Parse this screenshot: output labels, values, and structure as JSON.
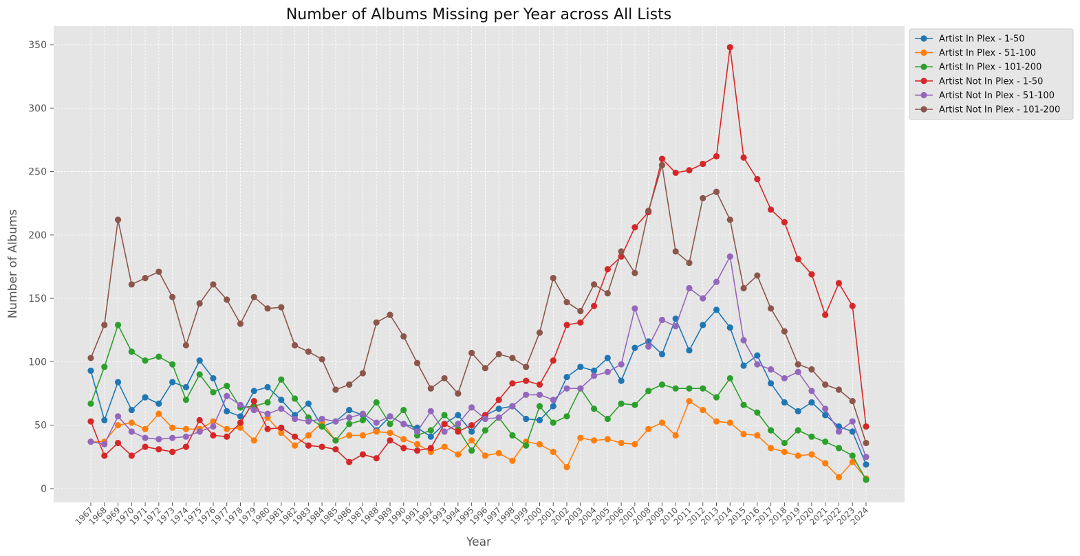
{
  "chart_data": {
    "type": "line",
    "title": "Number of Albums Missing per Year across All Lists",
    "xlabel": "Year",
    "ylabel": "Number of Albums",
    "ylim": [
      -10,
      365
    ],
    "yticks": [
      0,
      50,
      100,
      150,
      200,
      250,
      300,
      350
    ],
    "grid": true,
    "legend_position": "outside top-right",
    "background": "#e5e5e5",
    "x": [
      "1967",
      "1968",
      "1969",
      "1970",
      "1971",
      "1972",
      "1973",
      "1974",
      "1975",
      "1976",
      "1977",
      "1978",
      "1979",
      "1980",
      "1981",
      "1982",
      "1983",
      "1984",
      "1985",
      "1986",
      "1987",
      "1988",
      "1989",
      "1990",
      "1991",
      "1992",
      "1993",
      "1994",
      "1995",
      "1996",
      "1997",
      "1998",
      "1999",
      "2000",
      "2001",
      "2002",
      "2003",
      "2004",
      "2005",
      "2006",
      "2007",
      "2008",
      "2009",
      "2010",
      "2011",
      "2012",
      "2013",
      "2014",
      "2015",
      "2016",
      "2017",
      "2018",
      "2019",
      "2020",
      "2021",
      "2022",
      "2023",
      "2024"
    ],
    "series": [
      {
        "name": "Artist In Plex - 1-50",
        "color": "#1f77b4",
        "values": [
          93,
          54,
          84,
          62,
          72,
          67,
          84,
          80,
          101,
          87,
          61,
          57,
          77,
          80,
          70,
          58,
          67,
          49,
          53,
          62,
          58,
          46,
          57,
          51,
          48,
          41,
          51,
          58,
          45,
          58,
          63,
          65,
          55,
          54,
          65,
          88,
          96,
          93,
          103,
          85,
          111,
          116,
          106,
          134,
          109,
          129,
          141,
          127,
          97,
          105,
          83,
          68,
          61,
          68,
          58,
          49,
          45,
          19
        ]
      },
      {
        "name": "Artist In Plex - 51-100",
        "color": "#ff7f0e",
        "values": [
          37,
          37,
          50,
          52,
          47,
          59,
          48,
          47,
          47,
          53,
          47,
          48,
          38,
          56,
          44,
          34,
          42,
          52,
          38,
          42,
          42,
          45,
          44,
          39,
          35,
          29,
          33,
          27,
          38,
          26,
          28,
          22,
          37,
          35,
          29,
          17,
          40,
          38,
          39,
          36,
          35,
          47,
          52,
          42,
          69,
          62,
          53,
          52,
          43,
          42,
          32,
          29,
          26,
          27,
          20,
          9,
          21,
          8
        ]
      },
      {
        "name": "Artist In Plex - 101-200",
        "color": "#2ca02c",
        "values": [
          67,
          96,
          129,
          108,
          101,
          104,
          98,
          70,
          90,
          76,
          81,
          64,
          65,
          68,
          86,
          71,
          56,
          49,
          38,
          51,
          54,
          68,
          51,
          62,
          42,
          46,
          58,
          47,
          30,
          46,
          56,
          42,
          34,
          65,
          52,
          57,
          79,
          63,
          55,
          67,
          66,
          77,
          82,
          79,
          79,
          79,
          72,
          87,
          66,
          60,
          46,
          36,
          46,
          41,
          37,
          32,
          26,
          7
        ]
      },
      {
        "name": "Artist Not In Plex - 1-50",
        "color": "#d62728",
        "values": [
          53,
          26,
          36,
          26,
          33,
          31,
          29,
          33,
          54,
          42,
          41,
          52,
          69,
          47,
          48,
          41,
          34,
          33,
          31,
          21,
          27,
          24,
          38,
          32,
          30,
          32,
          51,
          45,
          50,
          58,
          70,
          83,
          85,
          82,
          101,
          129,
          131,
          144,
          173,
          183,
          206,
          218,
          260,
          249,
          251,
          256,
          262,
          348,
          261,
          244,
          220,
          210,
          181,
          169,
          137,
          162,
          144,
          49
        ]
      },
      {
        "name": "Artist Not In Plex - 51-100",
        "color": "#9467bd",
        "values": [
          37,
          35,
          57,
          45,
          40,
          39,
          40,
          41,
          45,
          49,
          73,
          66,
          62,
          59,
          63,
          55,
          53,
          55,
          53,
          56,
          59,
          52,
          57,
          51,
          45,
          61,
          45,
          51,
          64,
          55,
          56,
          65,
          74,
          74,
          70,
          79,
          79,
          89,
          92,
          98,
          142,
          112,
          133,
          128,
          158,
          150,
          163,
          183,
          117,
          98,
          94,
          87,
          92,
          77,
          63,
          45,
          53,
          25
        ]
      },
      {
        "name": "Artist Not In Plex - 101-200",
        "color": "#8c564b",
        "values": [
          103,
          129,
          212,
          161,
          166,
          171,
          151,
          113,
          146,
          161,
          149,
          130,
          151,
          142,
          143,
          113,
          108,
          102,
          78,
          82,
          91,
          131,
          137,
          120,
          99,
          79,
          87,
          75,
          107,
          95,
          106,
          103,
          96,
          123,
          166,
          147,
          140,
          161,
          154,
          187,
          170,
          219,
          255,
          187,
          178,
          229,
          234,
          212,
          158,
          168,
          142,
          124,
          98,
          94,
          82,
          78,
          69,
          36
        ]
      }
    ]
  }
}
